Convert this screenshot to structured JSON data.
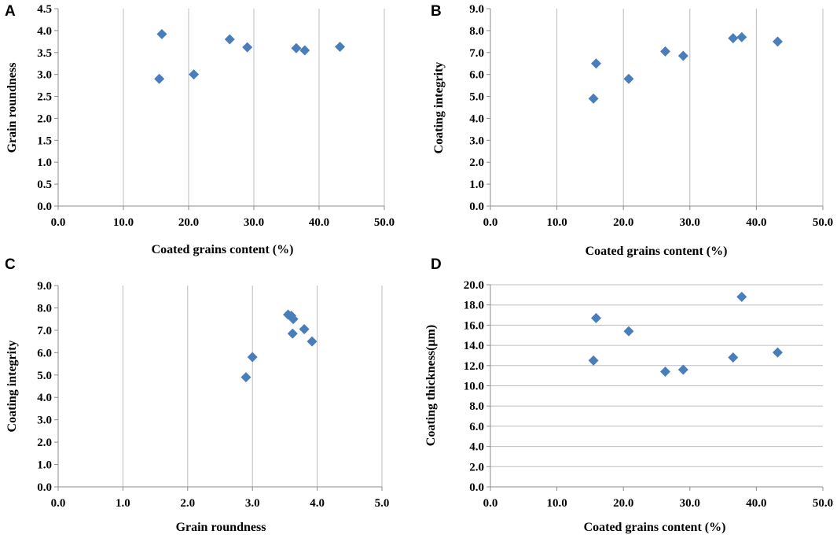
{
  "colors": {
    "marker": "#4A7EBB",
    "grid": "#BDBDBD",
    "axis": "#8C8C8C"
  },
  "chart_data": [
    {
      "panel": "A",
      "type": "scatter",
      "xlabel": "Coated grains content (%)",
      "ylabel": "Grain roundness",
      "xlim": [
        0,
        50
      ],
      "ylim": [
        0,
        4.5
      ],
      "xticks": [
        "0.0",
        "10.0",
        "20.0",
        "30.0",
        "40.0",
        "50.0"
      ],
      "yticks": [
        "0.0",
        "0.5",
        "1.0",
        "1.5",
        "2.0",
        "2.5",
        "3.0",
        "3.5",
        "4.0",
        "4.5"
      ],
      "grid": "vertical",
      "points": [
        [
          15.5,
          2.9
        ],
        [
          15.9,
          3.92
        ],
        [
          20.8,
          3.0
        ],
        [
          26.3,
          3.8
        ],
        [
          29.0,
          3.62
        ],
        [
          36.5,
          3.6
        ],
        [
          37.8,
          3.55
        ],
        [
          43.2,
          3.63
        ]
      ]
    },
    {
      "panel": "B",
      "type": "scatter",
      "xlabel": "Coated grains content (%)",
      "ylabel": "Coating integrity",
      "xlim": [
        0,
        50
      ],
      "ylim": [
        0,
        9
      ],
      "xticks": [
        "0.0",
        "10.0",
        "20.0",
        "30.0",
        "40.0",
        "50.0"
      ],
      "yticks": [
        "0.0",
        "1.0",
        "2.0",
        "3.0",
        "4.0",
        "5.0",
        "6.0",
        "7.0",
        "8.0",
        "9.0"
      ],
      "grid": "vertical",
      "points": [
        [
          15.5,
          4.9
        ],
        [
          15.9,
          6.5
        ],
        [
          20.8,
          5.8
        ],
        [
          26.3,
          7.05
        ],
        [
          29.0,
          6.85
        ],
        [
          36.5,
          7.65
        ],
        [
          37.8,
          7.7
        ],
        [
          43.2,
          7.5
        ]
      ]
    },
    {
      "panel": "C",
      "type": "scatter",
      "xlabel": "Grain roundness",
      "ylabel": "Coating integrity",
      "xlim": [
        0,
        5
      ],
      "ylim": [
        0,
        9
      ],
      "xticks": [
        "0.0",
        "1.0",
        "2.0",
        "3.0",
        "4.0",
        "5.0"
      ],
      "yticks": [
        "0.0",
        "1.0",
        "2.0",
        "3.0",
        "4.0",
        "5.0",
        "6.0",
        "7.0",
        "8.0",
        "9.0"
      ],
      "grid": "vertical",
      "points": [
        [
          2.9,
          4.9
        ],
        [
          3.0,
          5.8
        ],
        [
          3.55,
          7.7
        ],
        [
          3.6,
          7.65
        ],
        [
          3.63,
          7.5
        ],
        [
          3.62,
          6.85
        ],
        [
          3.8,
          7.05
        ],
        [
          3.92,
          6.5
        ]
      ]
    },
    {
      "panel": "D",
      "type": "scatter",
      "xlabel": "Coated grains content (%)",
      "ylabel": "Coating thickness(μm)",
      "xlim": [
        0,
        50
      ],
      "ylim": [
        0,
        20
      ],
      "xticks": [
        "0.0",
        "10.0",
        "20.0",
        "30.0",
        "40.0",
        "50.0"
      ],
      "yticks": [
        "0.0",
        "2.0",
        "4.0",
        "6.0",
        "8.0",
        "10.0",
        "12.0",
        "14.0",
        "16.0",
        "18.0",
        "20.0"
      ],
      "grid": "horizontal",
      "points": [
        [
          15.5,
          12.5
        ],
        [
          15.9,
          16.7
        ],
        [
          20.8,
          15.4
        ],
        [
          26.3,
          11.4
        ],
        [
          29.0,
          11.6
        ],
        [
          36.5,
          12.8
        ],
        [
          37.8,
          18.8
        ],
        [
          43.2,
          13.3
        ]
      ]
    }
  ]
}
